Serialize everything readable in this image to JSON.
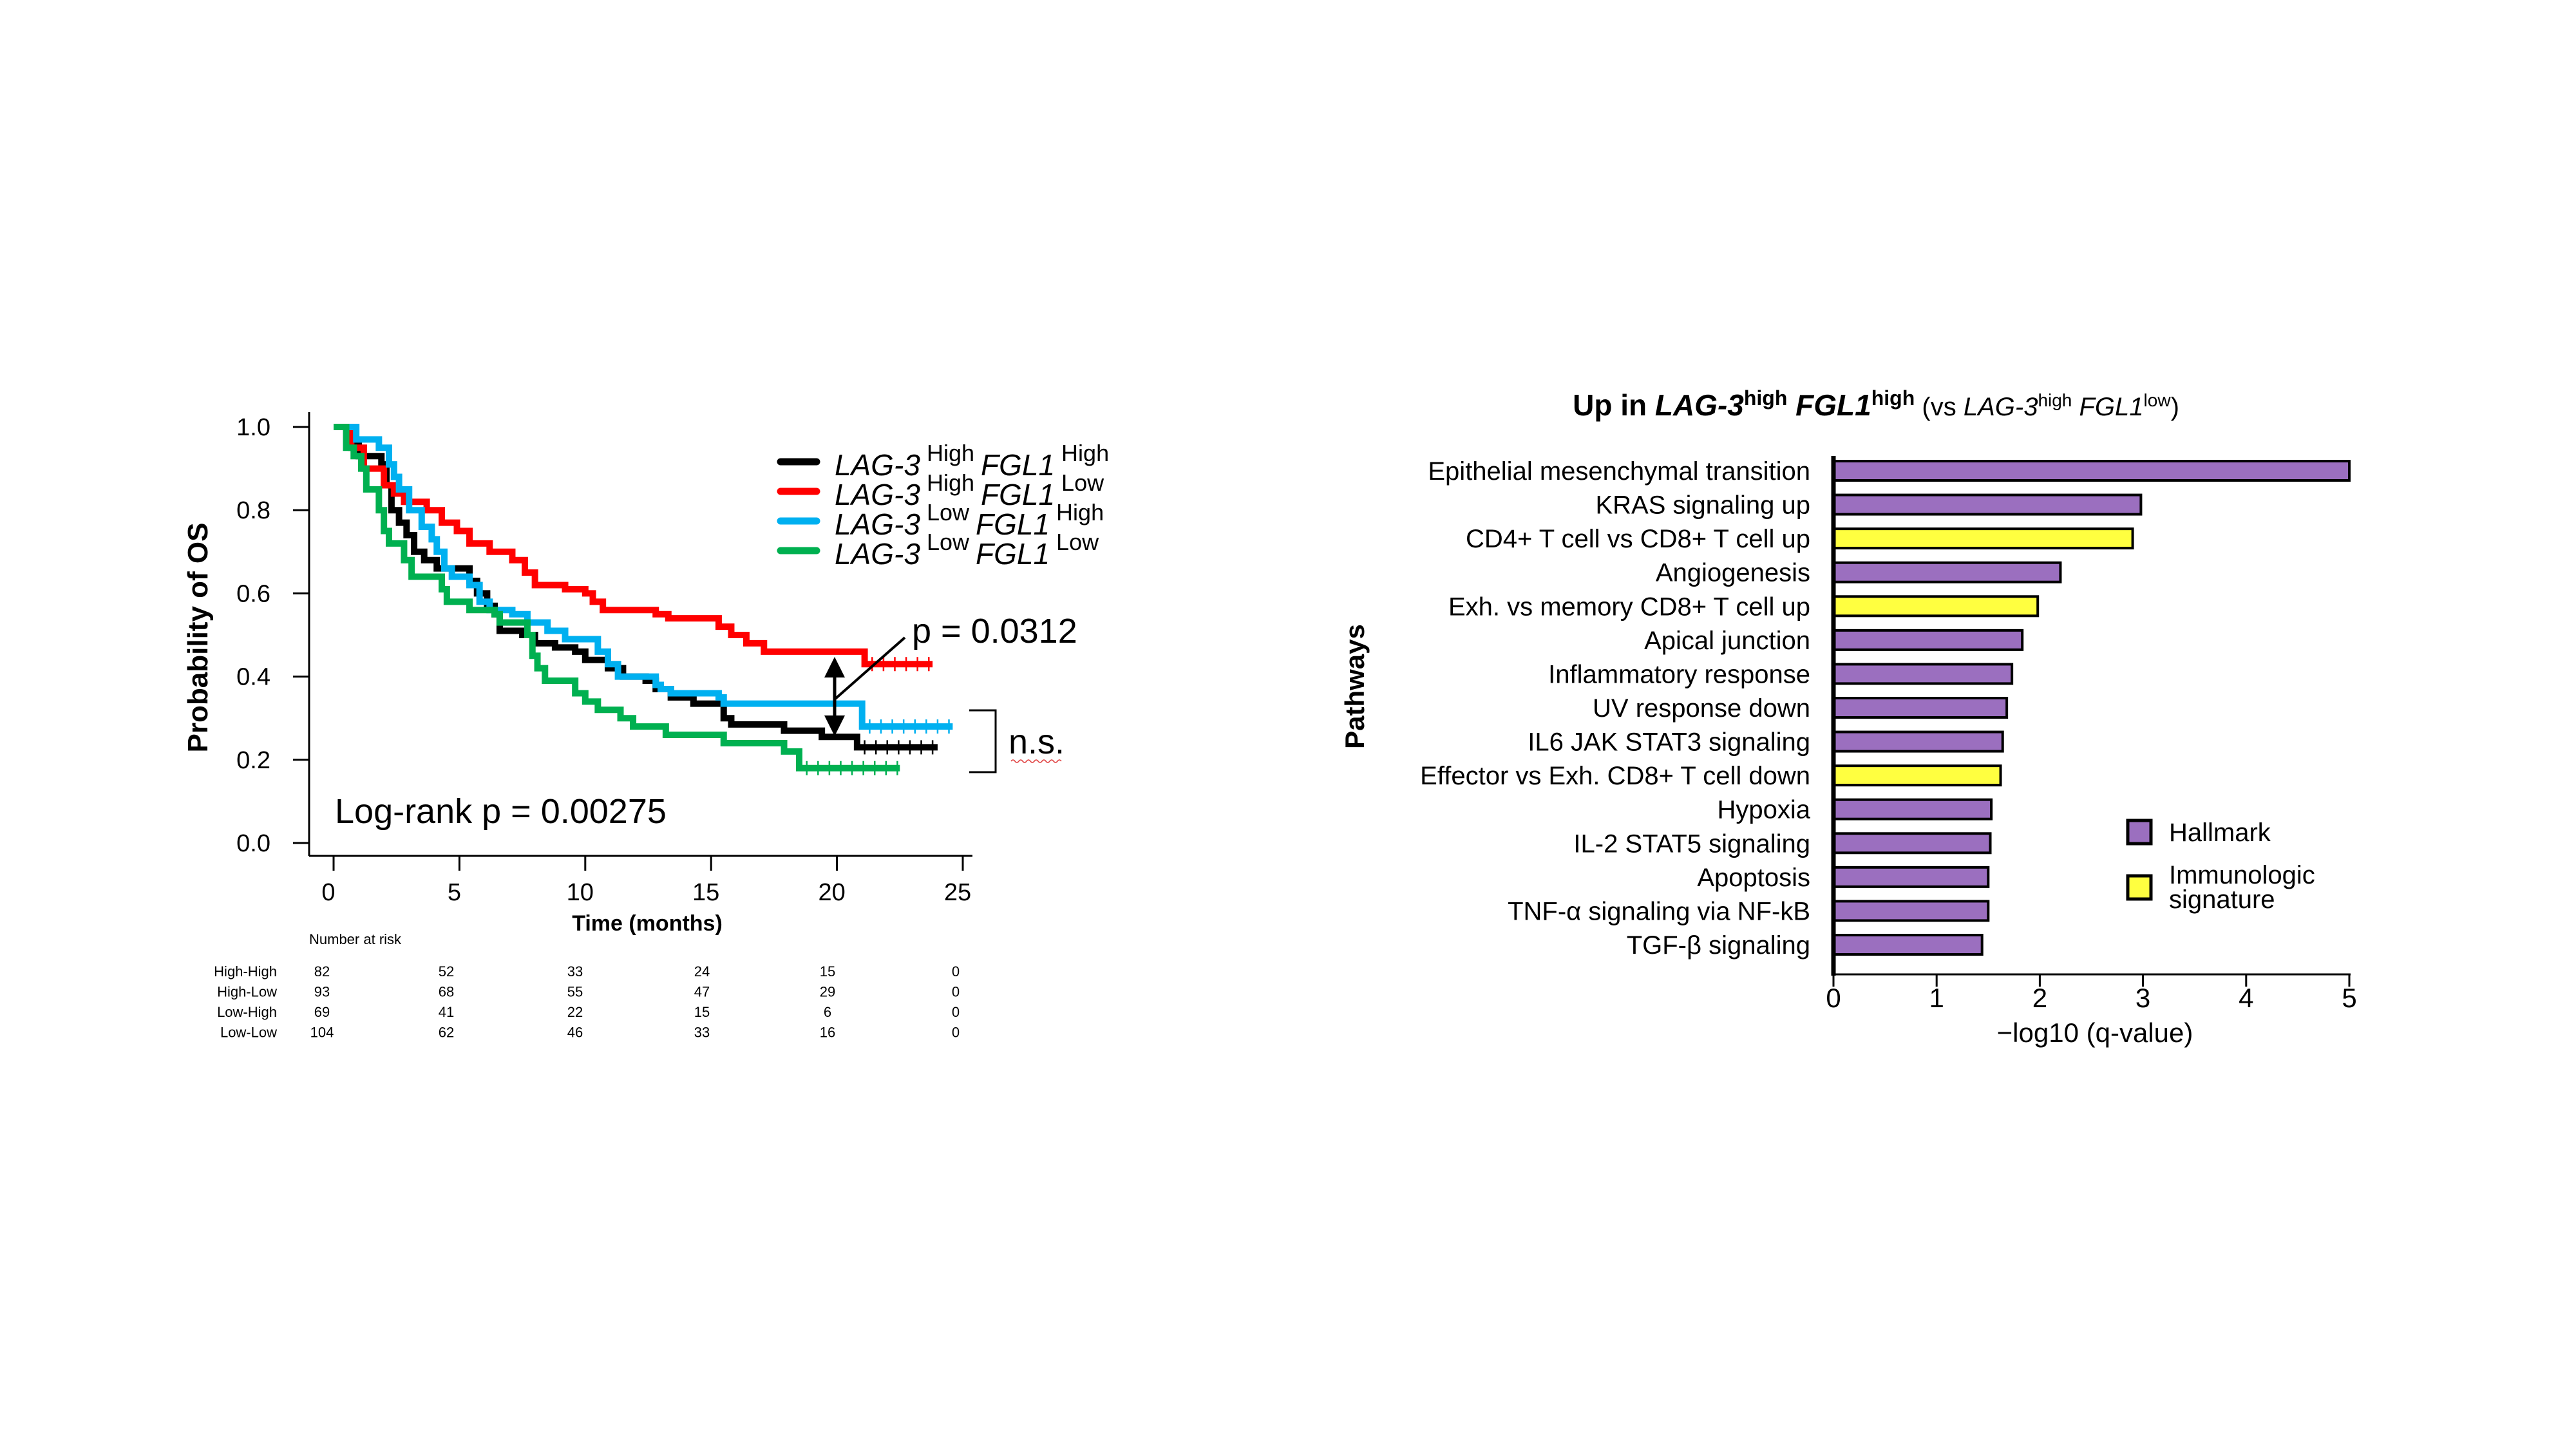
{
  "chart_data": [
    {
      "type": "line",
      "subtype": "kaplan-meier",
      "title": "",
      "xlabel": "Time (months)",
      "ylabel": "Probability of OS",
      "xlim": [
        0,
        25
      ],
      "ylim": [
        0,
        1.0
      ],
      "xticks": [
        "0",
        "5",
        "10",
        "15",
        "20",
        "25"
      ],
      "yticks": [
        "0.0",
        "0.2",
        "0.4",
        "0.6",
        "0.8",
        "1.0"
      ],
      "grid": false,
      "legend_position": "top-right",
      "annotations": {
        "logrank": "Log-rank p = 0.00275",
        "pairwise": "p = 0.0312",
        "ns": "n.s."
      },
      "series": [
        {
          "name": "High-High",
          "legend": {
            "gene1": "LAG-3",
            "sup1": "High",
            "gene2": "FGL1",
            "sup2": "High"
          },
          "color": "#000000",
          "steps": [
            [
              0,
              1.0
            ],
            [
              0.7,
              0.96
            ],
            [
              1.0,
              0.93
            ],
            [
              1.9,
              0.91
            ],
            [
              2.1,
              0.86
            ],
            [
              2.3,
              0.8
            ],
            [
              2.6,
              0.77
            ],
            [
              2.9,
              0.74
            ],
            [
              3.2,
              0.7
            ],
            [
              3.6,
              0.68
            ],
            [
              4.1,
              0.66
            ],
            [
              5.4,
              0.63
            ],
            [
              5.7,
              0.6
            ],
            [
              6.1,
              0.57
            ],
            [
              6.4,
              0.55
            ],
            [
              6.6,
              0.51
            ],
            [
              7.5,
              0.5
            ],
            [
              8.0,
              0.48
            ],
            [
              8.8,
              0.47
            ],
            [
              9.6,
              0.46
            ],
            [
              10.0,
              0.44
            ],
            [
              10.9,
              0.42
            ],
            [
              11.5,
              0.4
            ],
            [
              12.4,
              0.39
            ],
            [
              12.8,
              0.37
            ],
            [
              13.4,
              0.35
            ],
            [
              14.3,
              0.335
            ],
            [
              15.5,
              0.3
            ],
            [
              15.8,
              0.285
            ],
            [
              17.9,
              0.27
            ],
            [
              19.4,
              0.255
            ],
            [
              20.8,
              0.23
            ],
            [
              24.0,
              0.23
            ]
          ]
        },
        {
          "name": "High-Low",
          "legend": {
            "gene1": "LAG-3",
            "sup1": "High",
            "gene2": "FGL1",
            "sup2": "Low"
          },
          "color": "#ff0000",
          "steps": [
            [
              0,
              1.0
            ],
            [
              0.7,
              0.95
            ],
            [
              1.2,
              0.9
            ],
            [
              2.0,
              0.86
            ],
            [
              2.4,
              0.84
            ],
            [
              2.8,
              0.82
            ],
            [
              3.7,
              0.8
            ],
            [
              4.3,
              0.77
            ],
            [
              4.9,
              0.75
            ],
            [
              5.4,
              0.72
            ],
            [
              6.2,
              0.7
            ],
            [
              7.1,
              0.68
            ],
            [
              7.6,
              0.65
            ],
            [
              8.0,
              0.62
            ],
            [
              9.2,
              0.61
            ],
            [
              10.0,
              0.6
            ],
            [
              10.3,
              0.58
            ],
            [
              10.7,
              0.56
            ],
            [
              12.8,
              0.55
            ],
            [
              13.3,
              0.54
            ],
            [
              15.3,
              0.52
            ],
            [
              15.8,
              0.5
            ],
            [
              16.4,
              0.48
            ],
            [
              17.1,
              0.46
            ],
            [
              21.1,
              0.43
            ],
            [
              23.8,
              0.43
            ]
          ]
        },
        {
          "name": "Low-High",
          "legend": {
            "gene1": "LAG-3",
            "sup1": "Low",
            "gene2": "FGL1",
            "sup2": "High"
          },
          "color": "#00b0f0",
          "steps": [
            [
              0,
              1.0
            ],
            [
              0.9,
              0.97
            ],
            [
              1.8,
              0.95
            ],
            [
              2.2,
              0.91
            ],
            [
              2.4,
              0.88
            ],
            [
              2.6,
              0.85
            ],
            [
              3.0,
              0.8
            ],
            [
              3.5,
              0.76
            ],
            [
              3.9,
              0.73
            ],
            [
              4.1,
              0.7
            ],
            [
              4.4,
              0.66
            ],
            [
              4.7,
              0.64
            ],
            [
              5.4,
              0.62
            ],
            [
              5.8,
              0.58
            ],
            [
              6.2,
              0.56
            ],
            [
              7.1,
              0.55
            ],
            [
              7.7,
              0.53
            ],
            [
              8.5,
              0.51
            ],
            [
              9.2,
              0.49
            ],
            [
              10.5,
              0.46
            ],
            [
              10.9,
              0.43
            ],
            [
              11.3,
              0.4
            ],
            [
              12.8,
              0.38
            ],
            [
              13.0,
              0.37
            ],
            [
              13.4,
              0.36
            ],
            [
              15.3,
              0.35
            ],
            [
              15.5,
              0.335
            ],
            [
              21.0,
              0.28
            ],
            [
              24.6,
              0.28
            ]
          ]
        },
        {
          "name": "Low-Low",
          "legend": {
            "gene1": "LAG-3",
            "sup1": "Low",
            "gene2": "FGL1",
            "sup2": "Low"
          },
          "color": "#00b050",
          "steps": [
            [
              0,
              1.0
            ],
            [
              0.5,
              0.95
            ],
            [
              0.8,
              0.93
            ],
            [
              1.1,
              0.9
            ],
            [
              1.3,
              0.85
            ],
            [
              1.8,
              0.8
            ],
            [
              2.0,
              0.75
            ],
            [
              2.2,
              0.72
            ],
            [
              2.8,
              0.68
            ],
            [
              3.1,
              0.64
            ],
            [
              4.3,
              0.61
            ],
            [
              4.5,
              0.58
            ],
            [
              5.4,
              0.56
            ],
            [
              6.4,
              0.55
            ],
            [
              6.6,
              0.53
            ],
            [
              7.7,
              0.5
            ],
            [
              7.9,
              0.45
            ],
            [
              8.1,
              0.42
            ],
            [
              8.4,
              0.39
            ],
            [
              9.6,
              0.36
            ],
            [
              10.0,
              0.34
            ],
            [
              10.5,
              0.32
            ],
            [
              11.4,
              0.3
            ],
            [
              11.9,
              0.28
            ],
            [
              13.2,
              0.26
            ],
            [
              15.5,
              0.24
            ],
            [
              17.9,
              0.22
            ],
            [
              18.5,
              0.18
            ],
            [
              22.5,
              0.18
            ]
          ]
        }
      ],
      "risk_table": {
        "title": "Number at risk",
        "times": [
          0,
          5,
          10,
          15,
          20,
          25
        ],
        "rows": [
          {
            "label": "High-High",
            "values": [
              "82",
              "52",
              "33",
              "24",
              "15",
              "0"
            ]
          },
          {
            "label": "High-Low",
            "values": [
              "93",
              "68",
              "55",
              "47",
              "29",
              "0"
            ]
          },
          {
            "label": "Low-High",
            "values": [
              "69",
              "41",
              "22",
              "15",
              "6",
              "0"
            ]
          },
          {
            "label": "Low-Low",
            "values": [
              "104",
              "62",
              "46",
              "33",
              "16",
              "0"
            ]
          }
        ]
      }
    },
    {
      "type": "bar",
      "orientation": "horizontal",
      "title": {
        "prefix": "Up in ",
        "gene1": "LAG-3",
        "sup1": "high",
        "gene2": "FGL1",
        "sup2": "high",
        "vs_open": "(vs ",
        "gene3": "LAG-3",
        "sup3": "high",
        "gene4": "FGL1",
        "sup4": "low",
        "vs_close": ")"
      },
      "xlabel": "−log10 (q-value)",
      "ylabel": "Pathways",
      "xlim": [
        0,
        5
      ],
      "xticks": [
        "0",
        "1",
        "2",
        "3",
        "4",
        "5"
      ],
      "grid": false,
      "legend_position": "bottom-right",
      "legend": [
        {
          "label": "Hallmark",
          "color": "#9b6fbf"
        },
        {
          "label": "Immunologic signature",
          "lines": [
            "Immunologic",
            "signature"
          ],
          "color": "#ffff40"
        }
      ],
      "categories": [
        "Epithelial mesenchymal transition",
        "KRAS signaling up",
        "CD4+ T cell vs CD8+ T cell up",
        "Angiogenesis",
        "Exh. vs memory CD8+ T cell up",
        "Apical junction",
        "Inflammatory response",
        "UV response down",
        "IL6 JAK STAT3 signaling",
        "Effector vs Exh. CD8+ T cell down",
        "Hypoxia",
        "IL-2 STAT5 signaling",
        "Apoptosis",
        "TNF-α signaling via NF-kB",
        "TGF-β signaling"
      ],
      "values": [
        5.0,
        2.98,
        2.9,
        2.2,
        1.98,
        1.83,
        1.73,
        1.68,
        1.64,
        1.62,
        1.53,
        1.52,
        1.5,
        1.5,
        1.44
      ],
      "groups": [
        "Hallmark",
        "Hallmark",
        "Immunologic signature",
        "Hallmark",
        "Immunologic signature",
        "Hallmark",
        "Hallmark",
        "Hallmark",
        "Hallmark",
        "Immunologic signature",
        "Hallmark",
        "Hallmark",
        "Hallmark",
        "Hallmark",
        "Hallmark"
      ]
    }
  ]
}
